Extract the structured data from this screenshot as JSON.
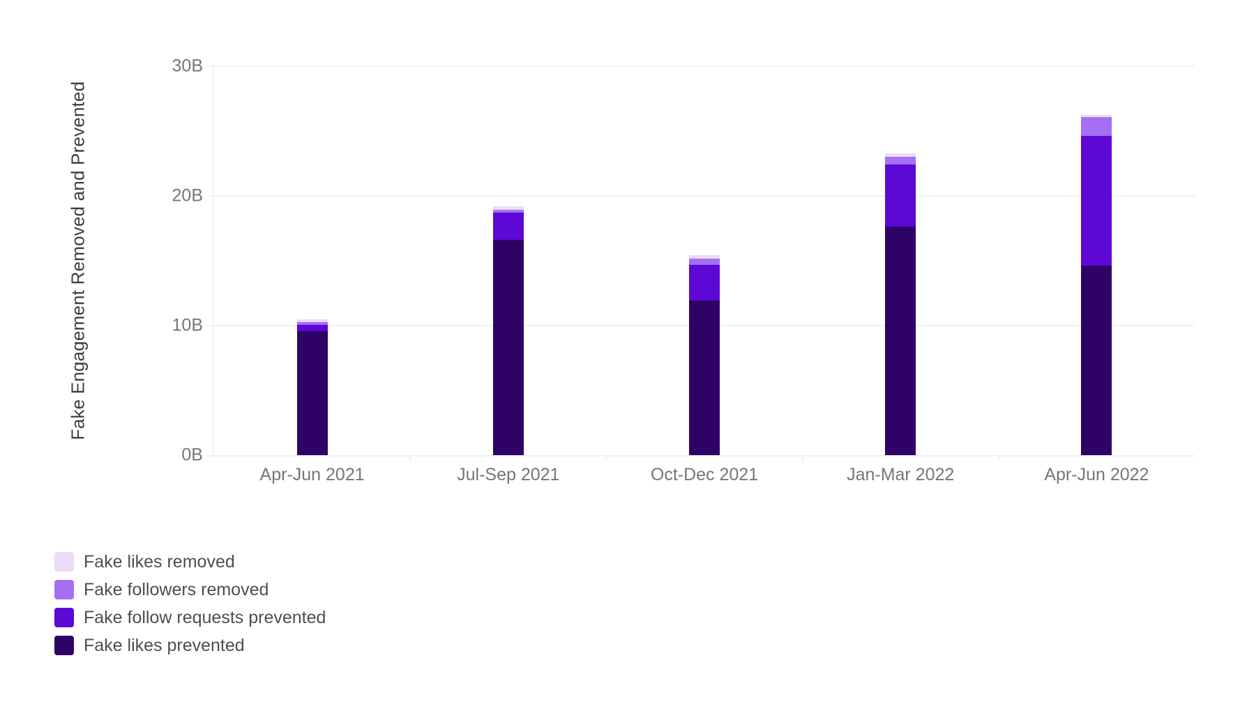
{
  "chart_data": {
    "type": "bar",
    "stacked": true,
    "y_axis_title": "Fake Engagement Removed and Prevented",
    "categories": [
      "Apr-Jun 2021",
      "Jul-Sep 2021",
      "Oct-Dec 2021",
      "Jan-Mar 2022",
      "Apr-Jun 2022"
    ],
    "series": [
      {
        "name": "Fake likes prevented",
        "color": "#2f0266",
        "values": [
          9.55,
          16.6,
          11.95,
          17.65,
          14.6
        ]
      },
      {
        "name": "Fake follow requests prevented",
        "color": "#5d08d4",
        "values": [
          0.5,
          2.1,
          2.75,
          4.75,
          10.0
        ]
      },
      {
        "name": "Fake followers removed",
        "color": "#a56ff4",
        "values": [
          0.2,
          0.2,
          0.45,
          0.6,
          1.5
        ]
      },
      {
        "name": "Fake likes removed",
        "color": "#eadcf8",
        "values": [
          0.25,
          0.3,
          0.3,
          0.3,
          0.15
        ]
      }
    ],
    "totals": [
      10.5,
      19.2,
      15.45,
      23.3,
      26.25
    ],
    "unit": "B",
    "ylim": [
      0,
      30
    ],
    "y_ticks": [
      {
        "value": 0,
        "label": "0B"
      },
      {
        "value": 10,
        "label": "10B"
      },
      {
        "value": 20,
        "label": "20B"
      },
      {
        "value": 30,
        "label": "30B"
      }
    ],
    "grid": true,
    "legend_position": "bottom-left",
    "legend_order_top_to_bottom": [
      "Fake likes removed",
      "Fake followers removed",
      "Fake follow requests prevented",
      "Fake likes prevented"
    ]
  },
  "style_colors": {
    "axis_line": "#f0f0f0",
    "gridline": "#f1f1f1",
    "tick_label": "#767676",
    "axis_title": "#3d3d3d",
    "legend_text": "#4e4e4e",
    "background": "#ffffff"
  }
}
